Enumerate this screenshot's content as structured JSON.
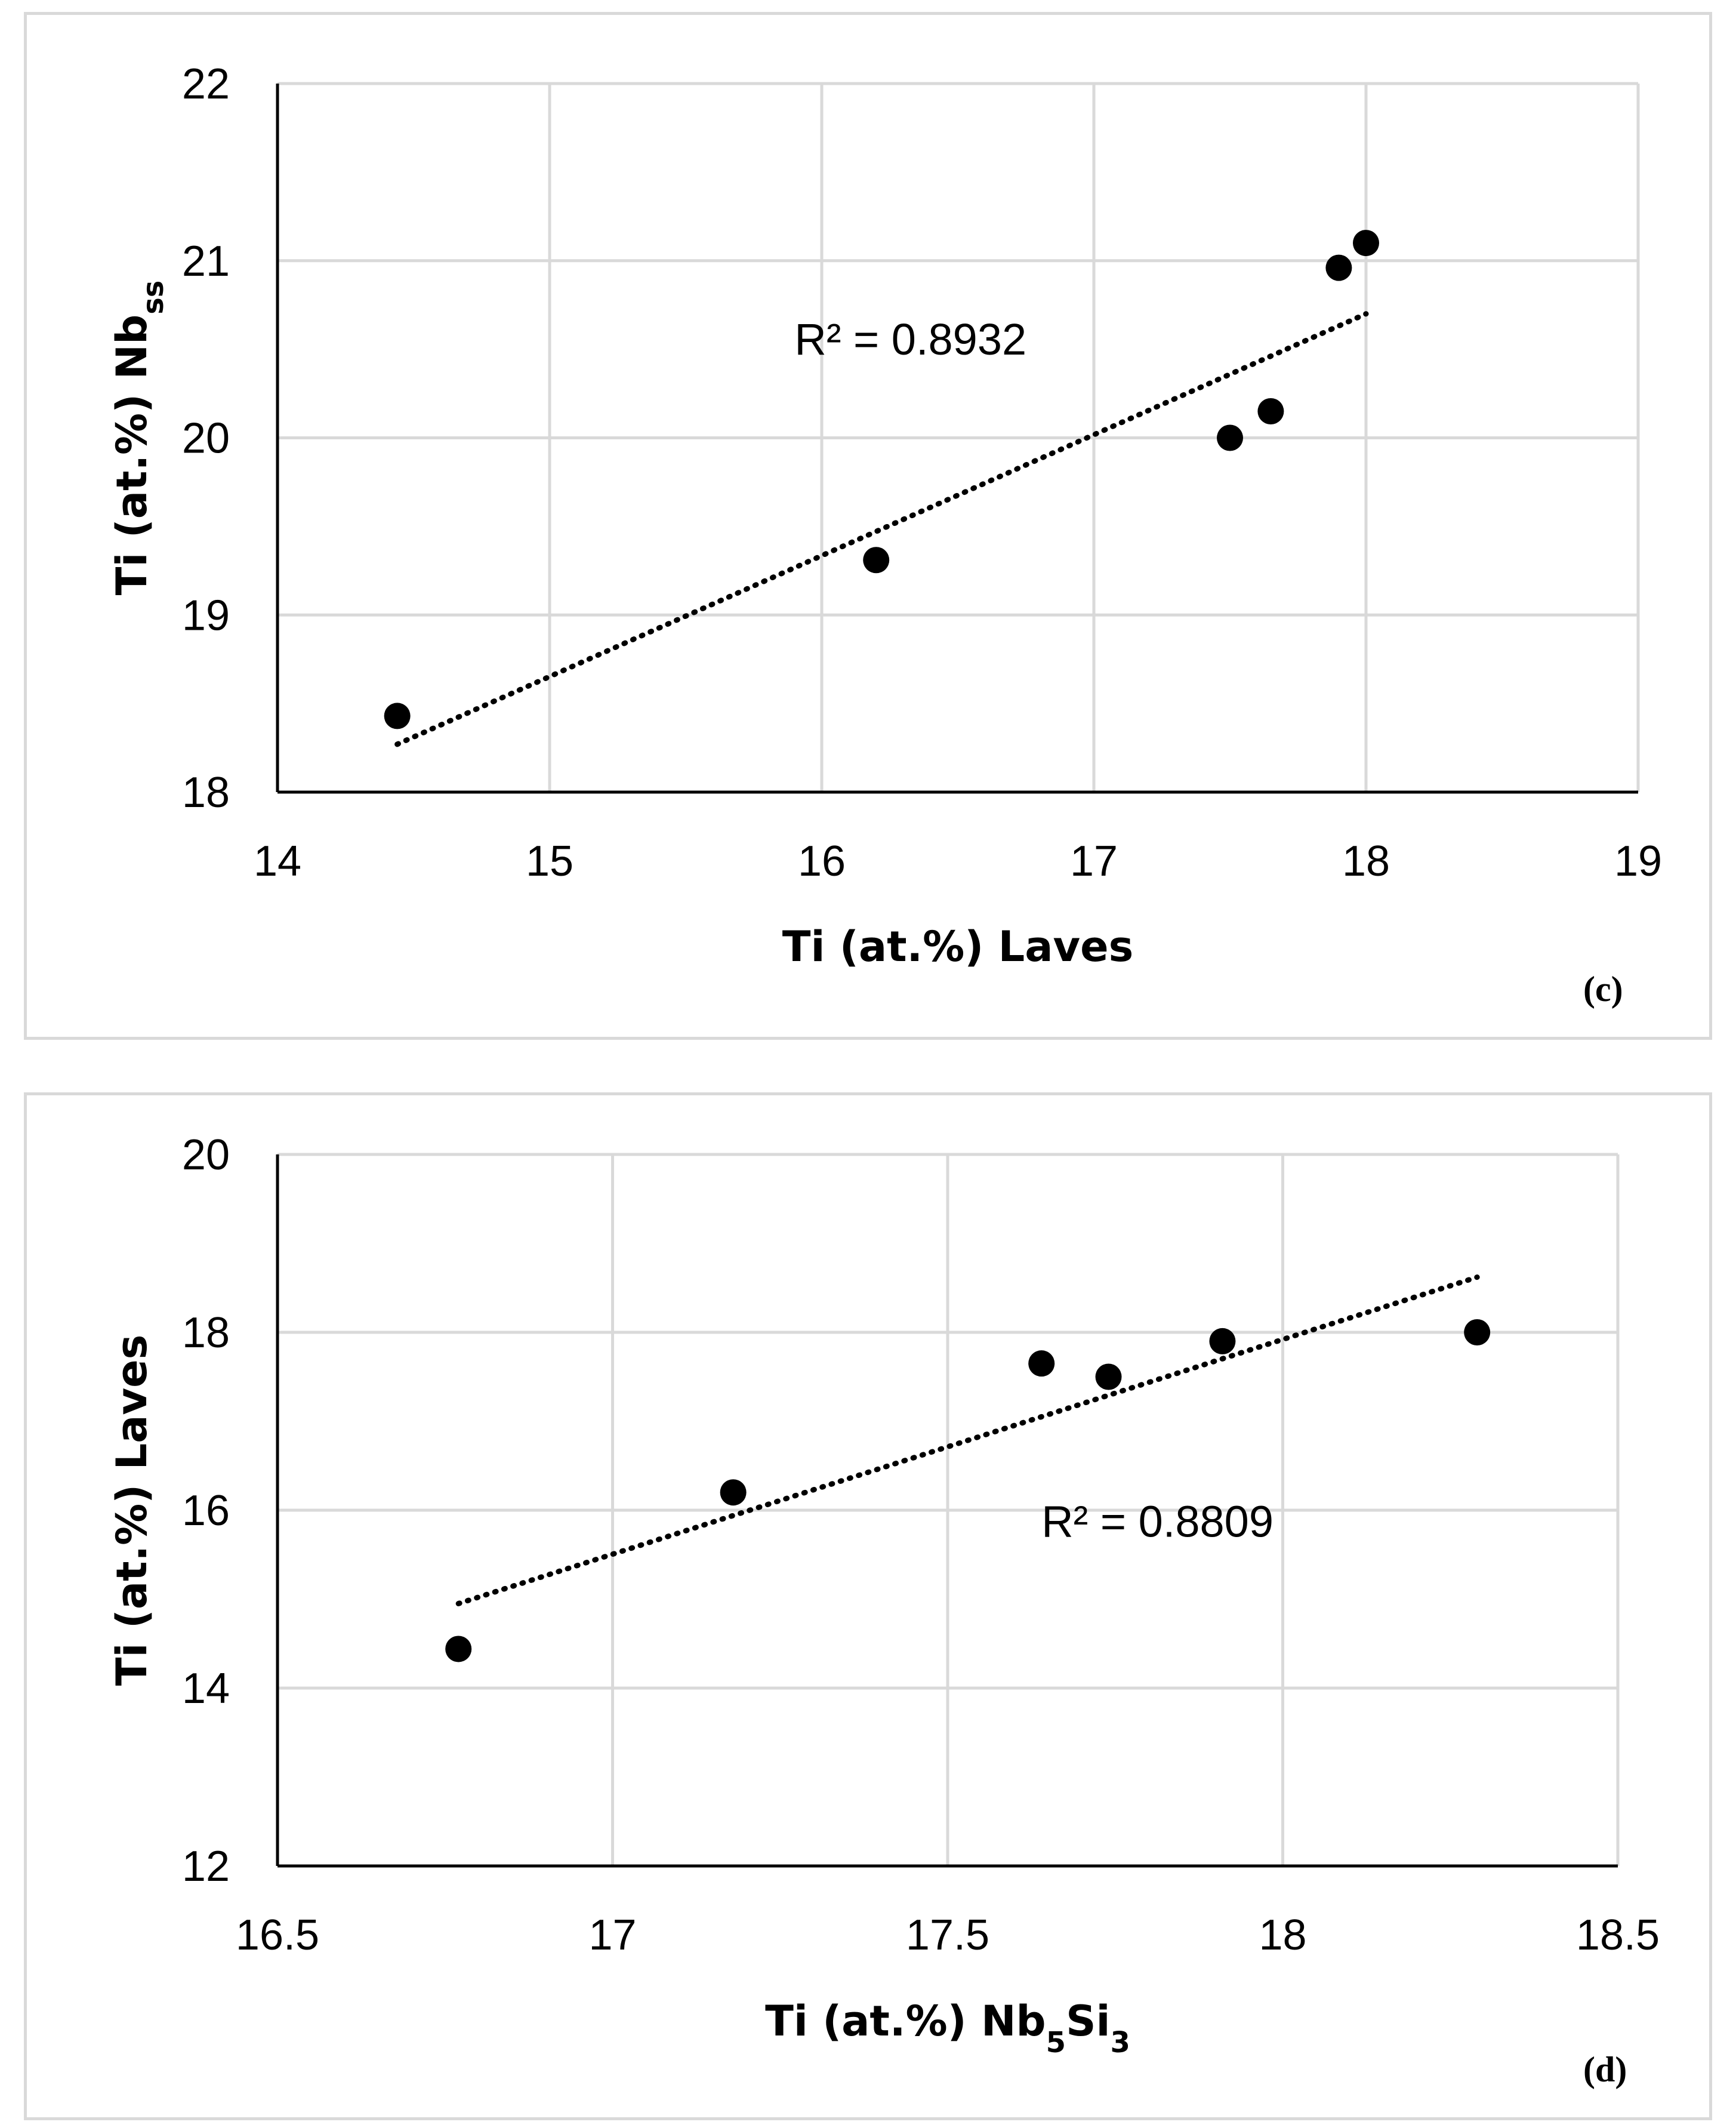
{
  "chart_data": [
    {
      "type": "scatter",
      "panel_label": "(c)",
      "title": "",
      "xlabel": {
        "main": "Ti (at.%) Laves",
        "sub": "",
        "tail": ""
      },
      "ylabel": {
        "main": "Ti (at.%) Nb",
        "sub": "ss",
        "tail": ""
      },
      "xlim": [
        14,
        19
      ],
      "ylim": [
        18,
        22
      ],
      "xticks": [
        14,
        15,
        16,
        17,
        18,
        19
      ],
      "yticks": [
        18,
        19,
        20,
        21,
        22
      ],
      "xtick_labels": [
        "14",
        "15",
        "16",
        "17",
        "18",
        "19"
      ],
      "ytick_labels": [
        "18",
        "19",
        "20",
        "21",
        "22"
      ],
      "grid": true,
      "points": [
        {
          "x": 14.44,
          "y": 18.43
        },
        {
          "x": 16.2,
          "y": 19.31
        },
        {
          "x": 17.5,
          "y": 20.0
        },
        {
          "x": 17.65,
          "y": 20.15
        },
        {
          "x": 17.9,
          "y": 20.96
        },
        {
          "x": 18.0,
          "y": 21.1
        }
      ],
      "trendline": {
        "x": [
          14.44,
          18.0
        ],
        "y": [
          18.27,
          20.7
        ],
        "style": "dotted"
      },
      "annotation": {
        "text": "R² = 0.8932",
        "x": 15.9,
        "y": 20.47
      }
    },
    {
      "type": "scatter",
      "panel_label": "(d)",
      "title": "",
      "xlabel": {
        "main": "Ti (at.%) Nb",
        "sub": "5",
        "tail": "Si",
        "sub2": "3"
      },
      "ylabel": {
        "main": "Ti (at.%) Laves",
        "sub": "",
        "tail": ""
      },
      "xlim": [
        16.5,
        18.5
      ],
      "ylim": [
        12,
        20
      ],
      "xticks": [
        16.5,
        17,
        17.5,
        18,
        18.5
      ],
      "yticks": [
        12,
        14,
        16,
        18,
        20
      ],
      "xtick_labels": [
        "16.5",
        "17",
        "17.5",
        "18",
        "18.5"
      ],
      "ytick_labels": [
        "12",
        "14",
        "16",
        "18",
        "20"
      ],
      "grid": true,
      "points": [
        {
          "x": 16.77,
          "y": 14.44
        },
        {
          "x": 17.18,
          "y": 16.2
        },
        {
          "x": 17.64,
          "y": 17.65
        },
        {
          "x": 17.74,
          "y": 17.5
        },
        {
          "x": 17.91,
          "y": 17.9
        },
        {
          "x": 18.29,
          "y": 18.0
        }
      ],
      "trendline": {
        "x": [
          16.77,
          18.29
        ],
        "y": [
          14.95,
          18.62
        ],
        "style": "dotted"
      },
      "annotation": {
        "text": "R² = 0.8809",
        "x": 17.64,
        "y": 15.7
      }
    }
  ],
  "colors": {
    "grid": "#d9d9d9",
    "axis": "#000000",
    "marker": "#000000",
    "border": "#d9d9d9"
  }
}
